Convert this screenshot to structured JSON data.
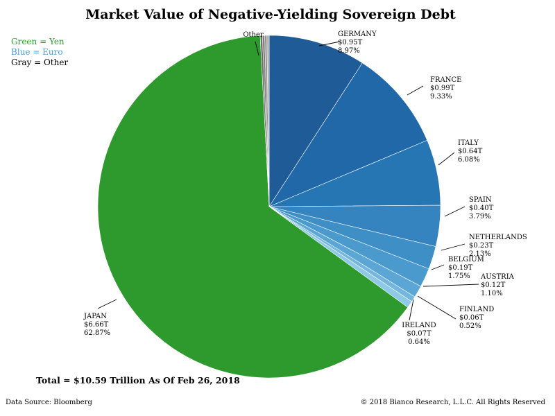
{
  "chart_data": {
    "type": "pie",
    "title": "Market Value of Negative-Yielding Sovereign Debt",
    "legend": [
      {
        "text": "Green = Yen",
        "color": "#2e9a2e"
      },
      {
        "text": "Blue = Euro",
        "color": "#4a9fd0"
      },
      {
        "text": "Gray = Other",
        "color": "#000000"
      }
    ],
    "slices": [
      {
        "name": "GERMANY",
        "value": 0.95,
        "value_label": "$0.95T",
        "percent": 8.97,
        "percent_label": "8.97%",
        "color": "#1f5b96"
      },
      {
        "name": "FRANCE",
        "value": 0.99,
        "value_label": "$0.99T",
        "percent": 9.33,
        "percent_label": "9.33%",
        "color": "#2168a8"
      },
      {
        "name": "ITALY",
        "value": 0.64,
        "value_label": "$0.64T",
        "percent": 6.08,
        "percent_label": "6.08%",
        "color": "#2676b4"
      },
      {
        "name": "SPAIN",
        "value": 0.4,
        "value_label": "$0.40T",
        "percent": 3.79,
        "percent_label": "3.79%",
        "color": "#3584bf"
      },
      {
        "name": "NETHERLANDS",
        "value": 0.23,
        "value_label": "$0.23T",
        "percent": 2.13,
        "percent_label": "2.13%",
        "color": "#3f8fc7"
      },
      {
        "name": "BELGIUM",
        "value": 0.19,
        "value_label": "$0.19T",
        "percent": 1.75,
        "percent_label": "1.75%",
        "color": "#4b9acd"
      },
      {
        "name": "AUSTRIA",
        "value": 0.12,
        "value_label": "$0.12T",
        "percent": 1.1,
        "percent_label": "1.10%",
        "color": "#5ba6d4"
      },
      {
        "name": "FINLAND",
        "value": 0.06,
        "value_label": "$0.06T",
        "percent": 0.52,
        "percent_label": "0.52%",
        "color": "#74b6dd"
      },
      {
        "name": "IRELAND",
        "value": 0.07,
        "value_label": "$0.07T",
        "percent": 0.64,
        "percent_label": "0.64%",
        "color": "#8fc9e8"
      },
      {
        "name": "JAPAN",
        "value": 6.66,
        "value_label": "$6.66T",
        "percent": 62.87,
        "percent_label": "62.87%",
        "color": "#2e9a2e"
      },
      {
        "name": "Other",
        "value": 0.09,
        "value_label": "",
        "percent": 0.82,
        "percent_label": "",
        "color": "#7f7f7f",
        "stripe_colors": [
          "#6a6a6a",
          "#7d7d7d",
          "#959595",
          "#aaaaaa"
        ]
      }
    ],
    "total_note": "Total = $10.59 Trillion As Of Feb 26, 2018",
    "source": "Data Source: Bloomberg",
    "copyright": "© 2018 Bianco Research, L.L.C. All Rights Reserved"
  }
}
